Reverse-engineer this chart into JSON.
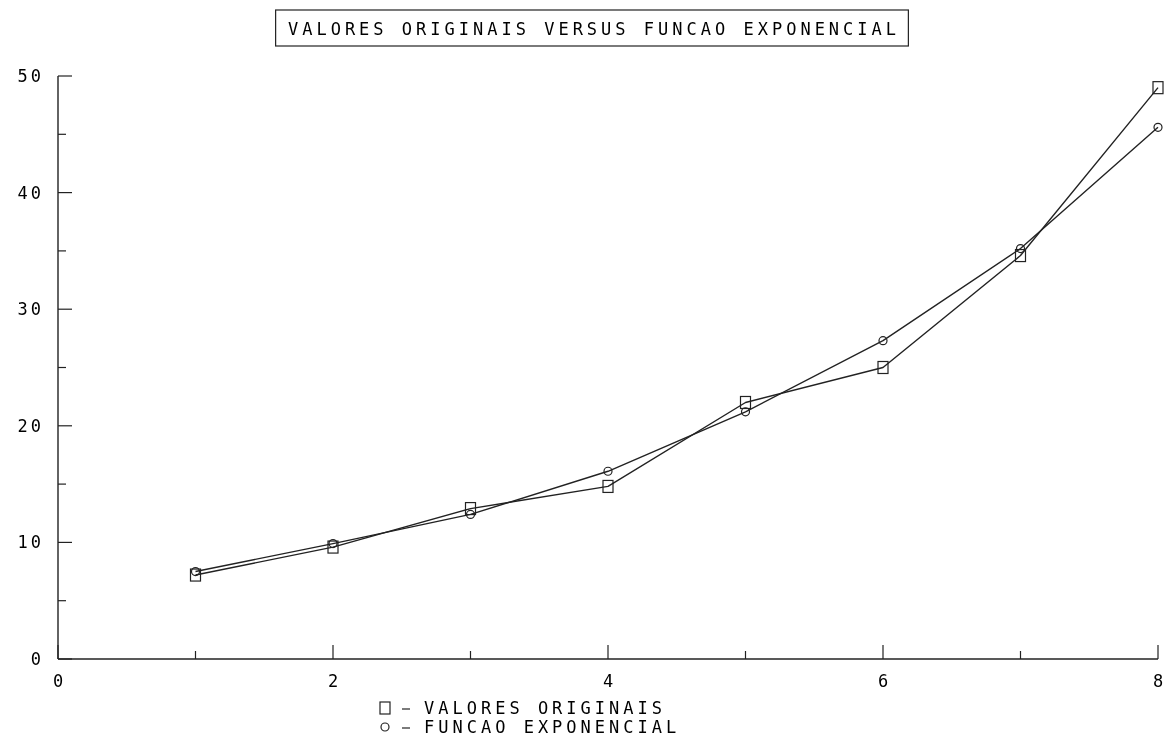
{
  "chart_data": {
    "type": "line",
    "title": "VALORES ORIGINAIS VERSUS FUNCAO EXPONENCIAL",
    "x": [
      1,
      2,
      3,
      4,
      5,
      6,
      7,
      8
    ],
    "series": [
      {
        "name": "VALORES ORIGINAIS",
        "color": "#222222",
        "marker": "square",
        "values": [
          7.2,
          9.6,
          12.9,
          14.8,
          22.0,
          25.0,
          34.6,
          49.0
        ]
      },
      {
        "name": "FUNCAO EXPONENCIAL",
        "color": "#222222",
        "marker": "circle",
        "values": [
          7.5,
          9.9,
          12.4,
          16.1,
          21.2,
          27.3,
          35.2,
          45.6
        ]
      }
    ],
    "xlim": [
      0,
      8
    ],
    "xticks": [
      0,
      {
        "value": 1,
        "label": null
      },
      2,
      {
        "value": 3,
        "label": null
      },
      4,
      {
        "value": 5,
        "label": null
      },
      6,
      {
        "value": 7,
        "label": null
      },
      8
    ],
    "ylim": [
      0,
      50
    ],
    "yticks": [
      0,
      {
        "value": 5,
        "label": null
      },
      10,
      {
        "value": 15,
        "label": null
      },
      20,
      {
        "value": 25,
        "label": null
      },
      30,
      {
        "value": 35,
        "label": null
      },
      40,
      {
        "value": 45,
        "label": null
      },
      50
    ],
    "legend": "bottom",
    "grid": false,
    "line_style": "solid"
  }
}
